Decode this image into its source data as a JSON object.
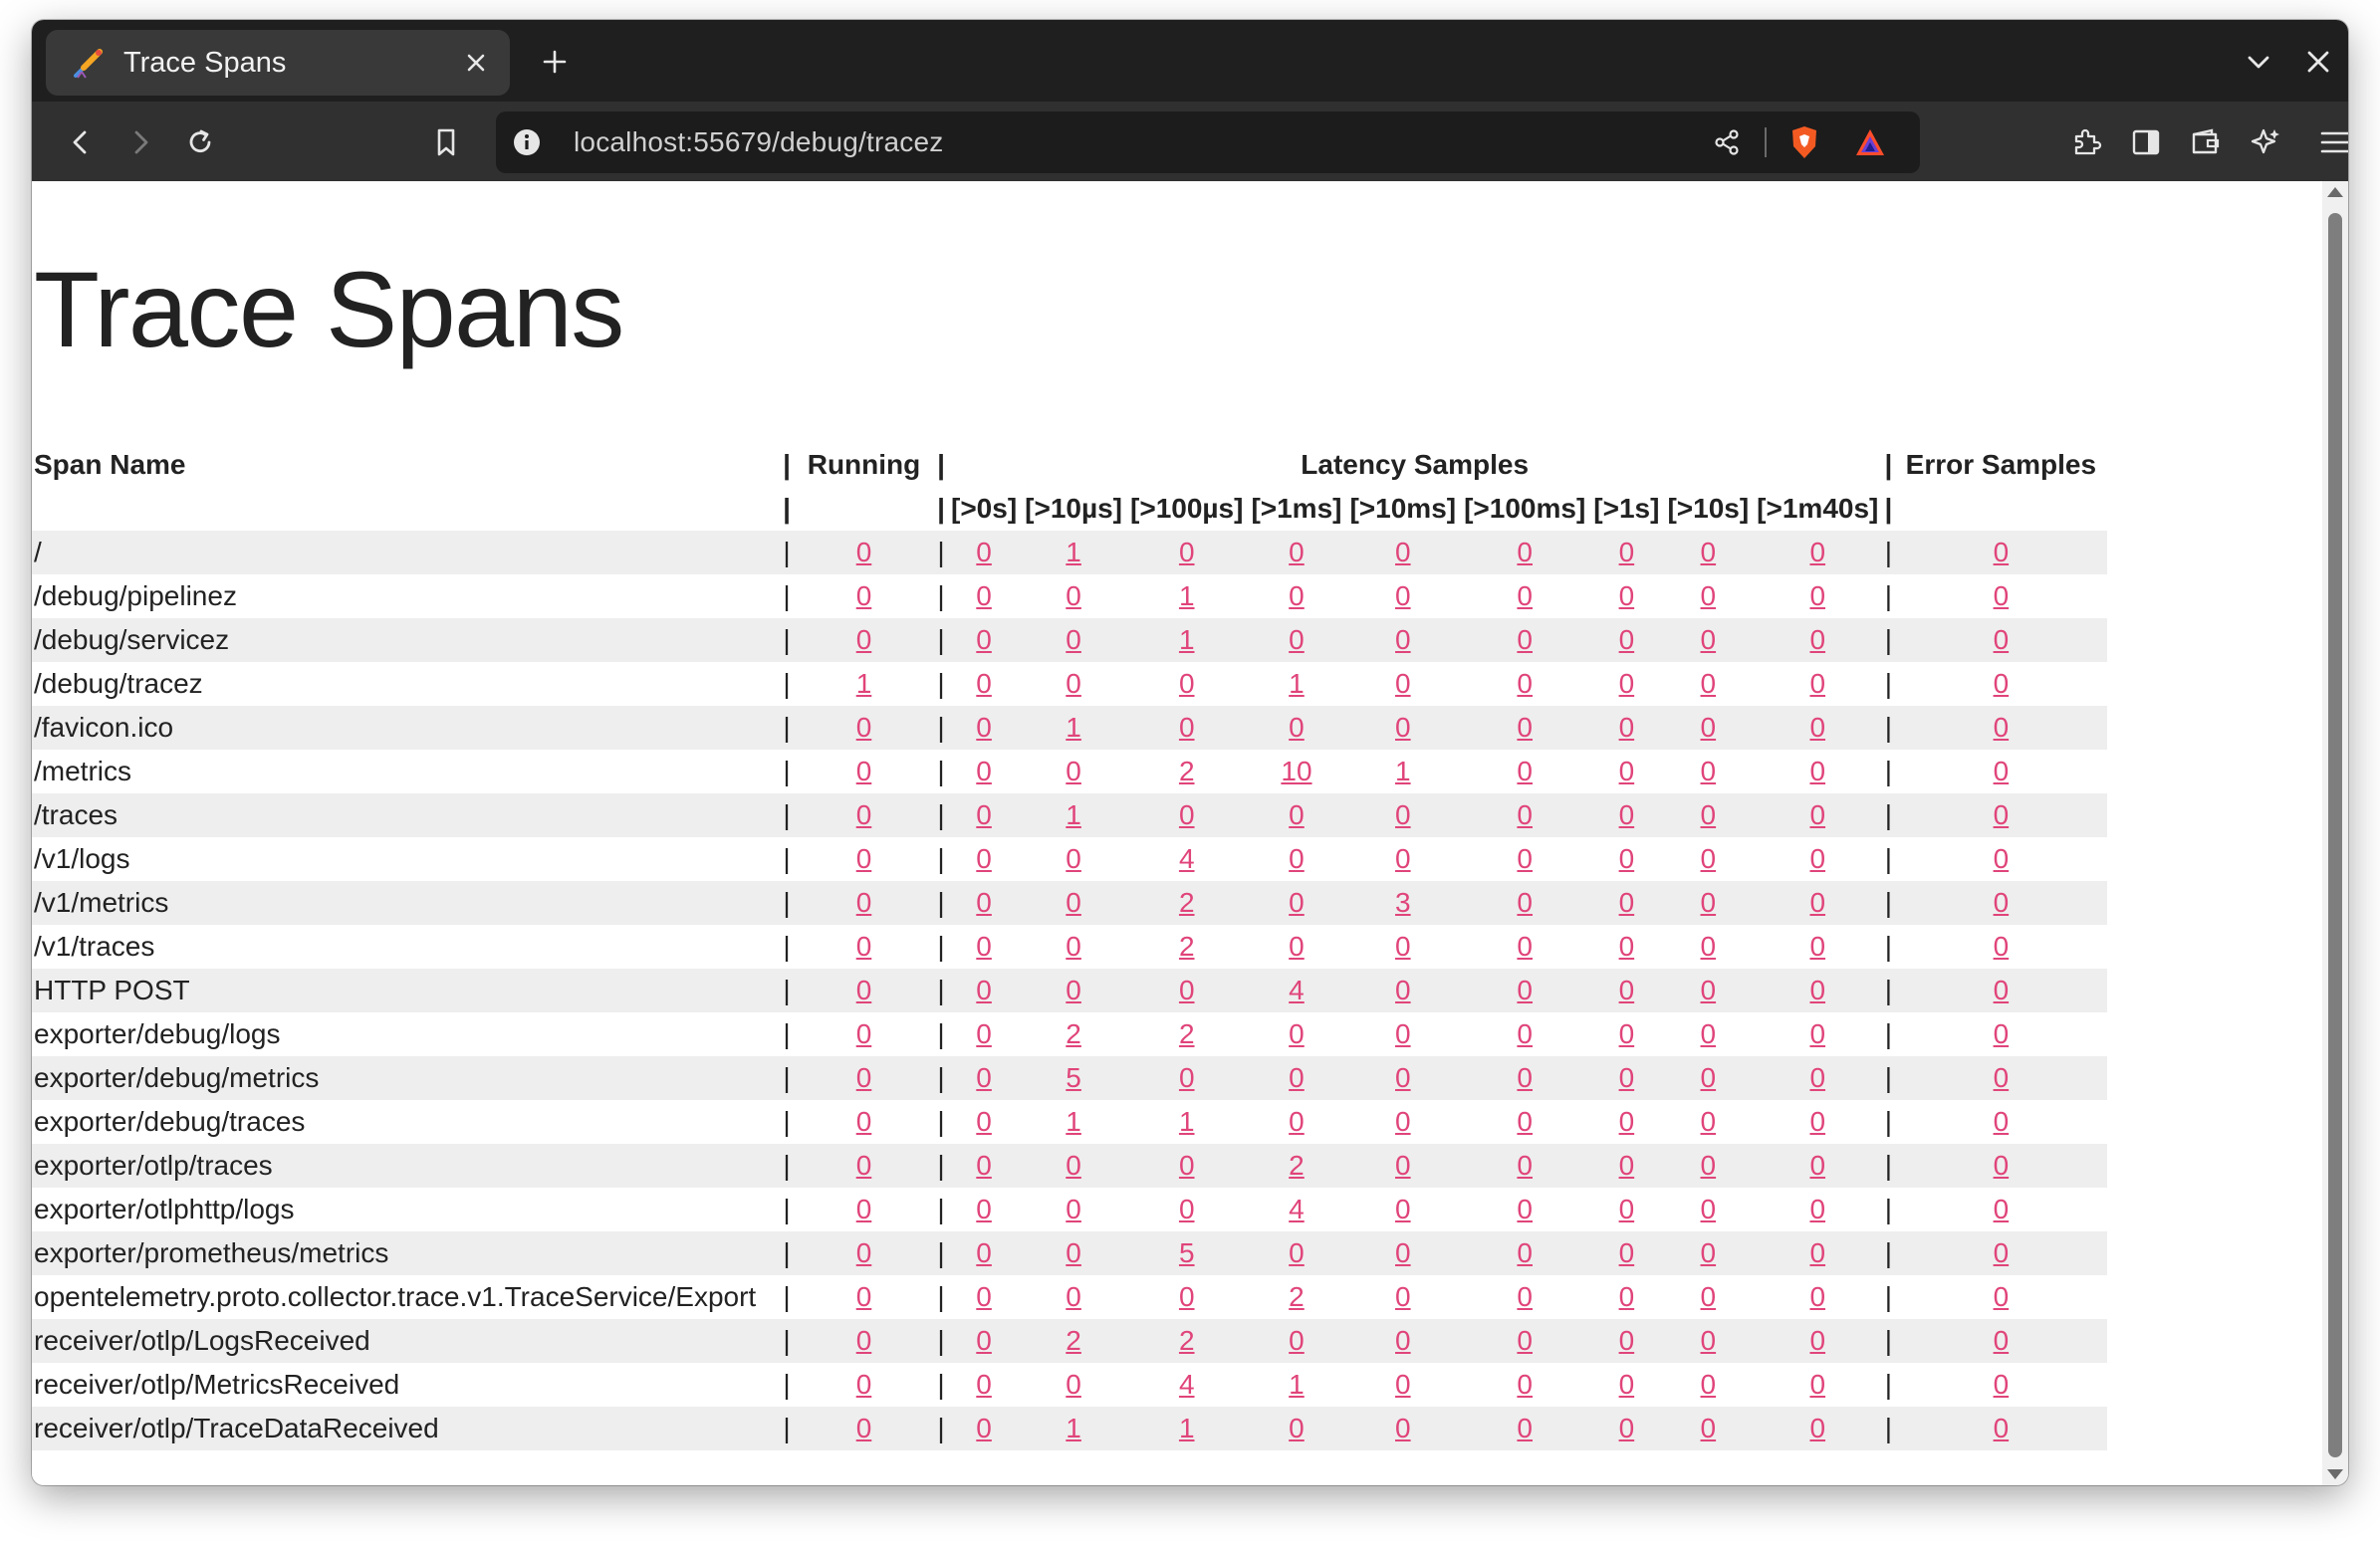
{
  "browser": {
    "tab_title": "Trace Spans",
    "url": "localhost:55679/debug/tracez"
  },
  "page": {
    "title": "Trace Spans",
    "link_color": "#e0447a"
  },
  "table": {
    "headers": {
      "span_name": "Span Name",
      "running": "Running",
      "latency": "Latency Samples",
      "error": "Error Samples",
      "separator": "|"
    },
    "latency_buckets": [
      "[>0s]",
      "[>10µs]",
      "[>100µs]",
      "[>1ms]",
      "[>10ms]",
      "[>100ms]",
      "[>1s]",
      "[>10s]",
      "[>1m40s]"
    ],
    "rows": [
      {
        "name": "/",
        "running": "0",
        "latency": [
          "0",
          "1",
          "0",
          "0",
          "0",
          "0",
          "0",
          "0",
          "0"
        ],
        "error": "0"
      },
      {
        "name": "/debug/pipelinez",
        "running": "0",
        "latency": [
          "0",
          "0",
          "1",
          "0",
          "0",
          "0",
          "0",
          "0",
          "0"
        ],
        "error": "0"
      },
      {
        "name": "/debug/servicez",
        "running": "0",
        "latency": [
          "0",
          "0",
          "1",
          "0",
          "0",
          "0",
          "0",
          "0",
          "0"
        ],
        "error": "0"
      },
      {
        "name": "/debug/tracez",
        "running": "1",
        "latency": [
          "0",
          "0",
          "0",
          "1",
          "0",
          "0",
          "0",
          "0",
          "0"
        ],
        "error": "0"
      },
      {
        "name": "/favicon.ico",
        "running": "0",
        "latency": [
          "0",
          "1",
          "0",
          "0",
          "0",
          "0",
          "0",
          "0",
          "0"
        ],
        "error": "0"
      },
      {
        "name": "/metrics",
        "running": "0",
        "latency": [
          "0",
          "0",
          "2",
          "10",
          "1",
          "0",
          "0",
          "0",
          "0"
        ],
        "error": "0"
      },
      {
        "name": "/traces",
        "running": "0",
        "latency": [
          "0",
          "1",
          "0",
          "0",
          "0",
          "0",
          "0",
          "0",
          "0"
        ],
        "error": "0"
      },
      {
        "name": "/v1/logs",
        "running": "0",
        "latency": [
          "0",
          "0",
          "4",
          "0",
          "0",
          "0",
          "0",
          "0",
          "0"
        ],
        "error": "0"
      },
      {
        "name": "/v1/metrics",
        "running": "0",
        "latency": [
          "0",
          "0",
          "2",
          "0",
          "3",
          "0",
          "0",
          "0",
          "0"
        ],
        "error": "0"
      },
      {
        "name": "/v1/traces",
        "running": "0",
        "latency": [
          "0",
          "0",
          "2",
          "0",
          "0",
          "0",
          "0",
          "0",
          "0"
        ],
        "error": "0"
      },
      {
        "name": "HTTP POST",
        "running": "0",
        "latency": [
          "0",
          "0",
          "0",
          "4",
          "0",
          "0",
          "0",
          "0",
          "0"
        ],
        "error": "0"
      },
      {
        "name": "exporter/debug/logs",
        "running": "0",
        "latency": [
          "0",
          "2",
          "2",
          "0",
          "0",
          "0",
          "0",
          "0",
          "0"
        ],
        "error": "0"
      },
      {
        "name": "exporter/debug/metrics",
        "running": "0",
        "latency": [
          "0",
          "5",
          "0",
          "0",
          "0",
          "0",
          "0",
          "0",
          "0"
        ],
        "error": "0"
      },
      {
        "name": "exporter/debug/traces",
        "running": "0",
        "latency": [
          "0",
          "1",
          "1",
          "0",
          "0",
          "0",
          "0",
          "0",
          "0"
        ],
        "error": "0"
      },
      {
        "name": "exporter/otlp/traces",
        "running": "0",
        "latency": [
          "0",
          "0",
          "0",
          "2",
          "0",
          "0",
          "0",
          "0",
          "0"
        ],
        "error": "0"
      },
      {
        "name": "exporter/otlphttp/logs",
        "running": "0",
        "latency": [
          "0",
          "0",
          "0",
          "4",
          "0",
          "0",
          "0",
          "0",
          "0"
        ],
        "error": "0"
      },
      {
        "name": "exporter/prometheus/metrics",
        "running": "0",
        "latency": [
          "0",
          "0",
          "5",
          "0",
          "0",
          "0",
          "0",
          "0",
          "0"
        ],
        "error": "0"
      },
      {
        "name": "opentelemetry.proto.collector.trace.v1.TraceService/Export",
        "running": "0",
        "latency": [
          "0",
          "0",
          "0",
          "2",
          "0",
          "0",
          "0",
          "0",
          "0"
        ],
        "error": "0"
      },
      {
        "name": "receiver/otlp/LogsReceived",
        "running": "0",
        "latency": [
          "0",
          "2",
          "2",
          "0",
          "0",
          "0",
          "0",
          "0",
          "0"
        ],
        "error": "0"
      },
      {
        "name": "receiver/otlp/MetricsReceived",
        "running": "0",
        "latency": [
          "0",
          "0",
          "4",
          "1",
          "0",
          "0",
          "0",
          "0",
          "0"
        ],
        "error": "0"
      },
      {
        "name": "receiver/otlp/TraceDataReceived",
        "running": "0",
        "latency": [
          "0",
          "1",
          "1",
          "0",
          "0",
          "0",
          "0",
          "0",
          "0"
        ],
        "error": "0"
      }
    ]
  }
}
